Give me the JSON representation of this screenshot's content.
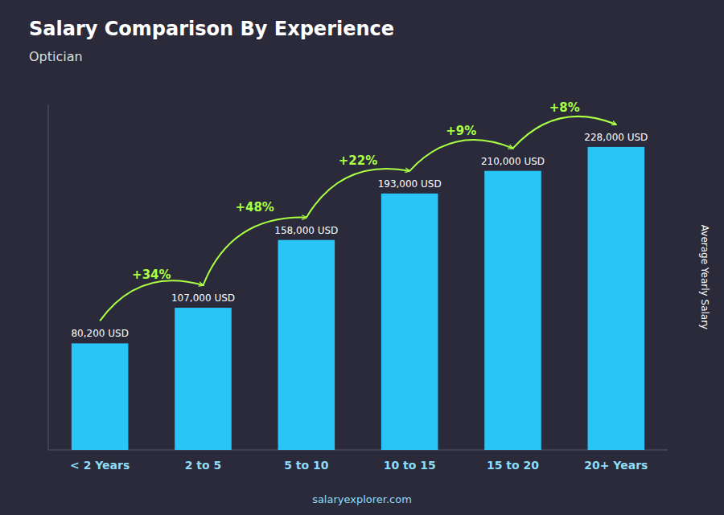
{
  "chart_data": {
    "type": "bar",
    "title": "Salary Comparison By Experience",
    "subtitle": "Optician",
    "y_label": "Average Yearly Salary",
    "footer": "salaryexplorer.com",
    "categories": [
      "< 2 Years",
      "2 to 5",
      "5 to 10",
      "10 to 15",
      "15 to 20",
      "20+ Years"
    ],
    "values": [
      80200,
      107000,
      158000,
      193000,
      210000,
      228000
    ],
    "value_labels": [
      "80,200 USD",
      "107,000 USD",
      "158,000 USD",
      "193,000 USD",
      "210,000 USD",
      "228,000 USD"
    ],
    "data_labels": true,
    "color": "#29c5f6",
    "ylim": [
      0,
      260000
    ],
    "tick_labels": "x",
    "grid": false,
    "annotations": [
      null,
      {
        "text": "+34%",
        "color": "#aaff44"
      },
      {
        "text": "+48%",
        "color": "#aaff44"
      },
      {
        "text": "+22%",
        "color": "#aaff44"
      },
      {
        "text": "+9%",
        "color": "#aaff44"
      },
      {
        "text": "+8%",
        "color": "#aaff44"
      }
    ]
  }
}
